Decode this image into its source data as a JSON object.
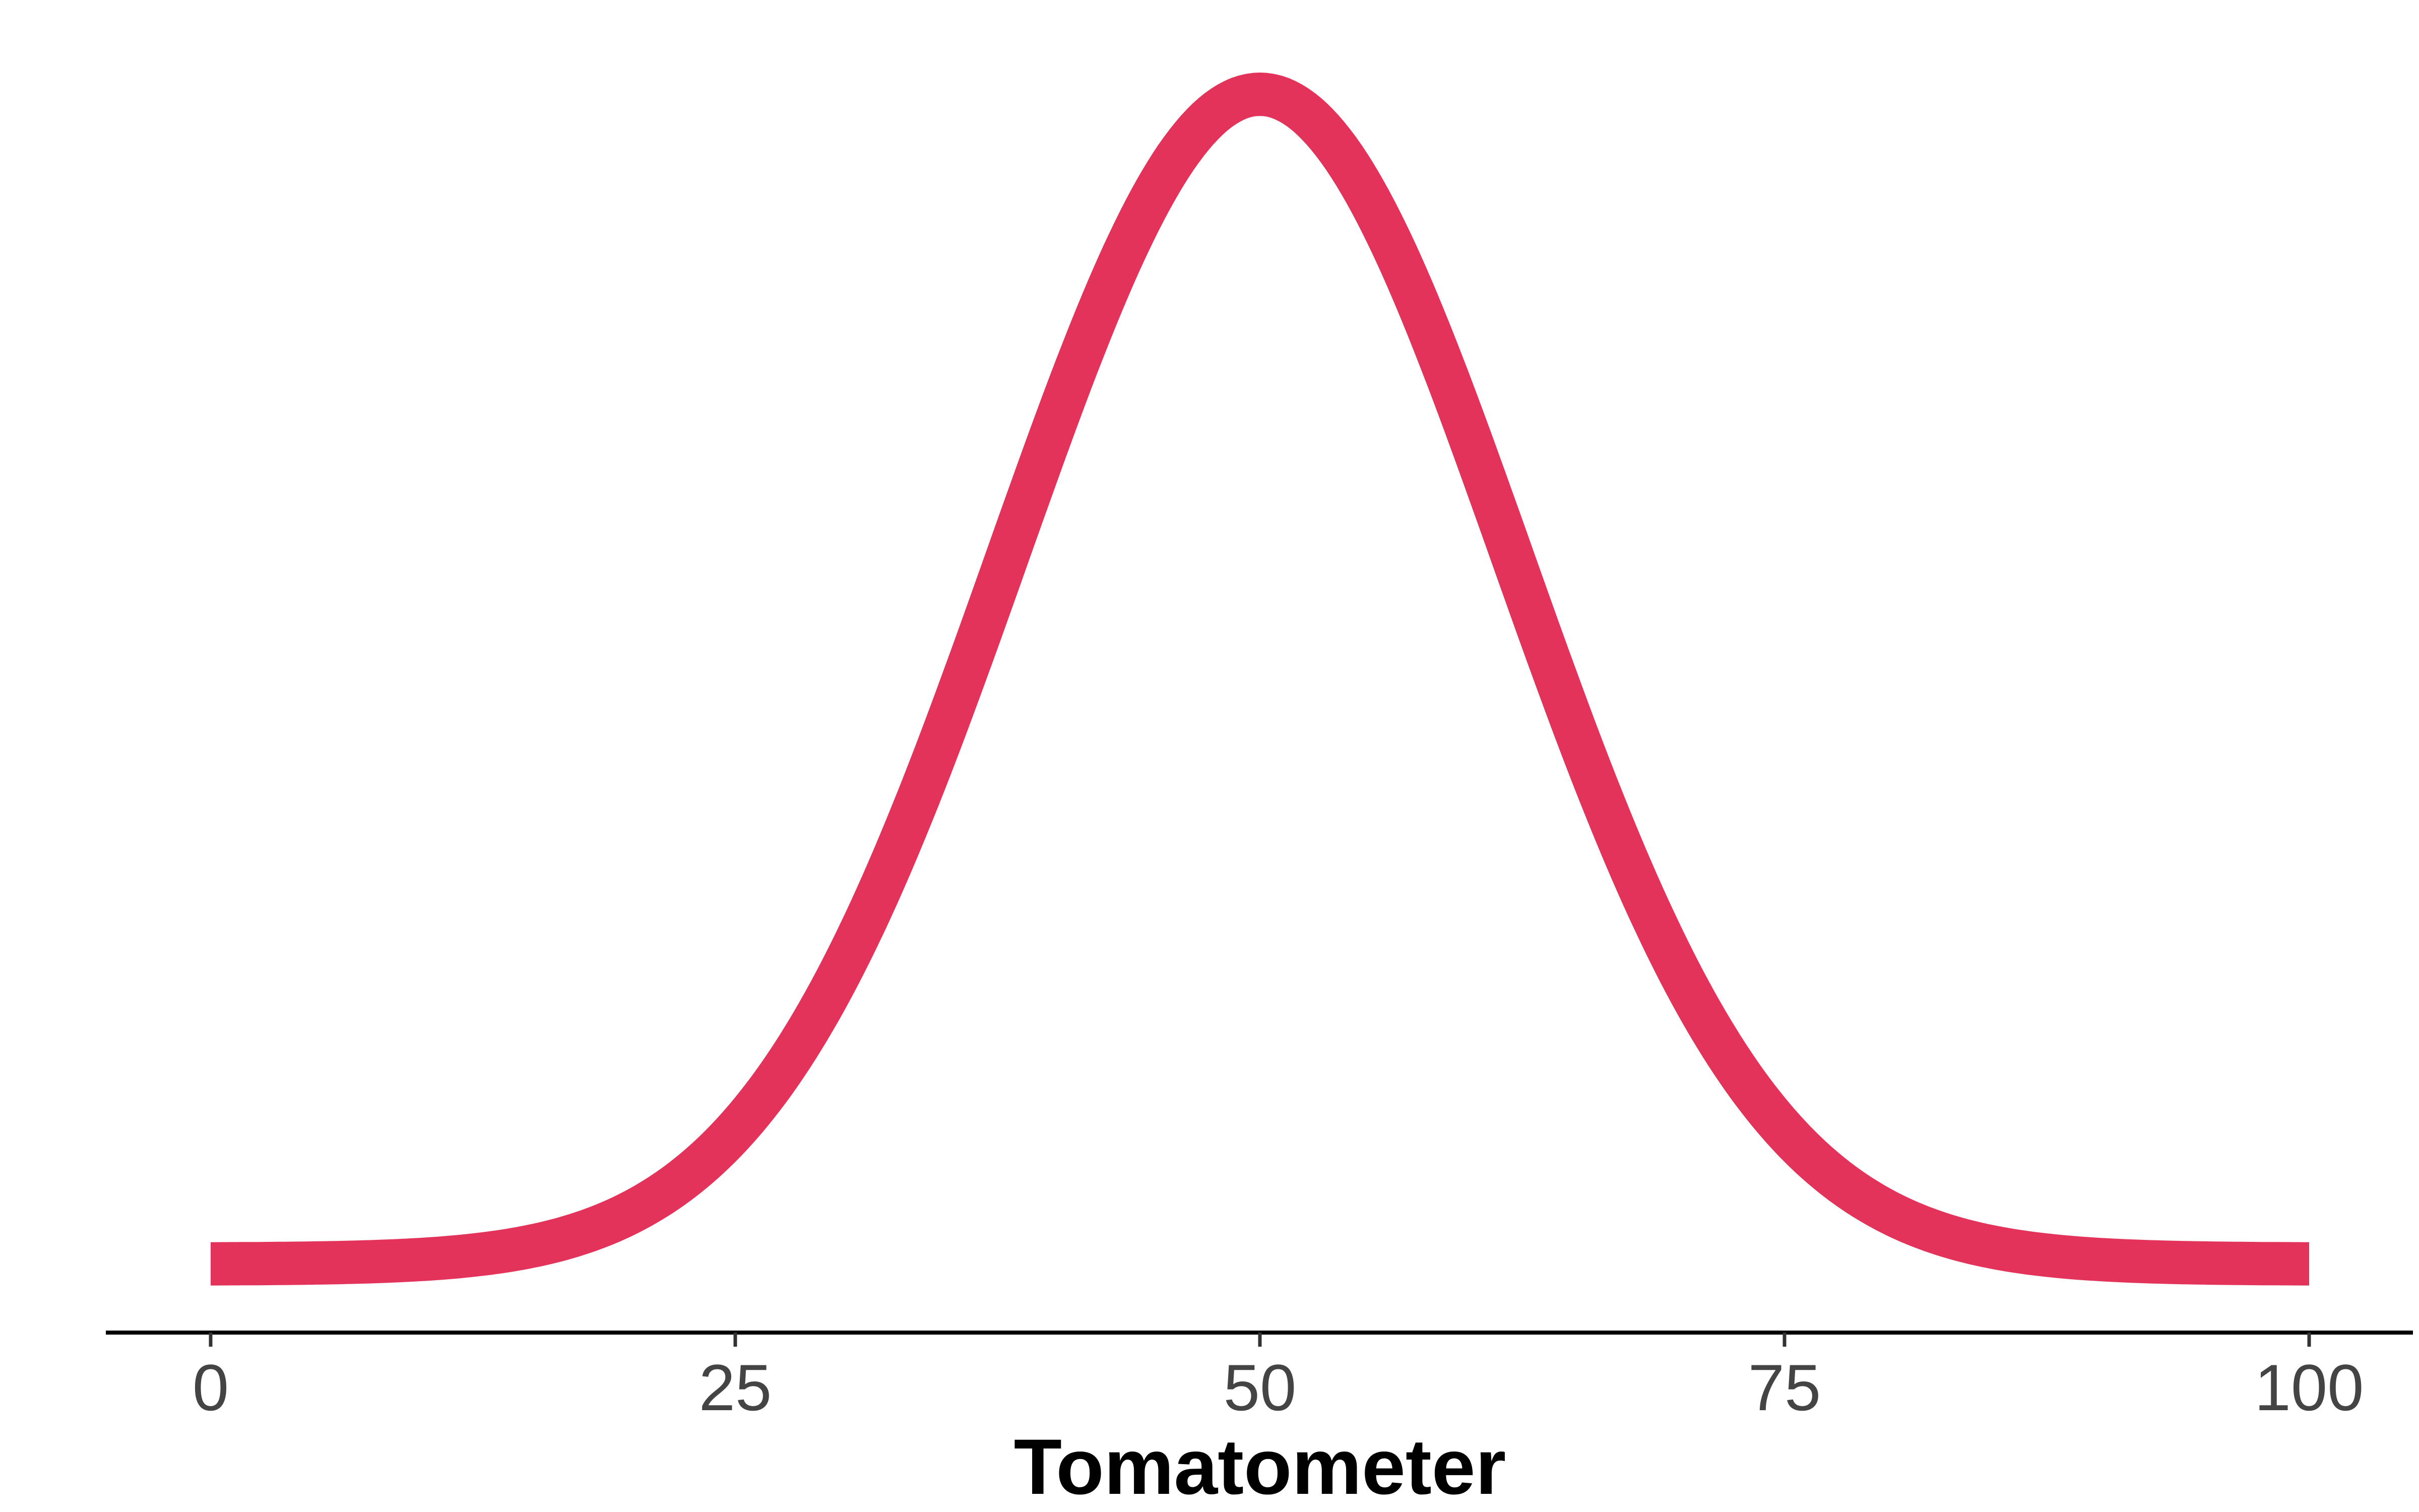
{
  "chart_data": {
    "type": "line",
    "title": "",
    "xlabel": "Tomatometer",
    "ylabel": "",
    "xlim": [
      0,
      100
    ],
    "x_ticks": [
      0,
      25,
      50,
      75,
      100
    ],
    "x_tick_labels": [
      "0",
      "25",
      "50",
      "75",
      "100"
    ],
    "grid": false,
    "legend": "none",
    "y_axis_visible": false,
    "distribution": {
      "shape": "normal",
      "mean": 50,
      "sd": 12
    },
    "series": [
      {
        "x": [
          0,
          10,
          20,
          25,
          30,
          35,
          40,
          45,
          50,
          55,
          60,
          65,
          70,
          75,
          80,
          90,
          100
        ],
        "y": [
          6e-06,
          0.00013,
          0.0015,
          0.0038,
          0.0083,
          0.015,
          0.023,
          0.03,
          0.0332,
          0.03,
          0.023,
          0.015,
          0.0083,
          0.0038,
          0.0015,
          0.00013,
          6e-06
        ],
        "color": "#E3335A"
      }
    ]
  }
}
